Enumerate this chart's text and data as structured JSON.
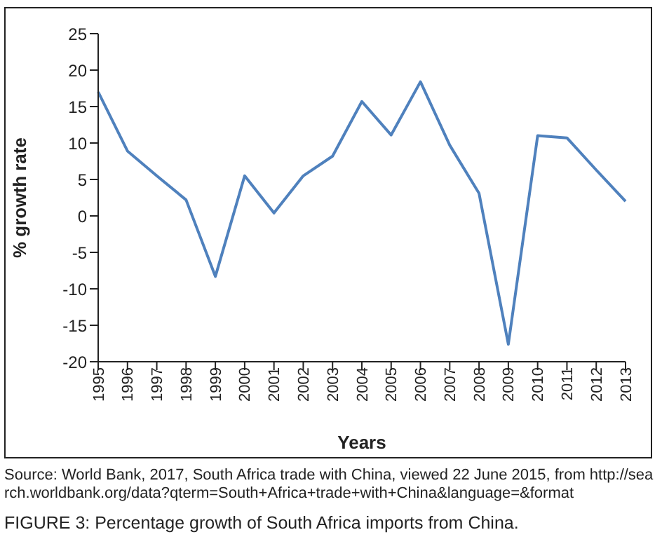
{
  "chart_data": {
    "type": "line",
    "xlabel": "Years",
    "ylabel": "% growth rate",
    "categories": [
      "1995",
      "1996",
      "1997",
      "1998",
      "1999",
      "2000",
      "2001",
      "2002",
      "2003",
      "2004",
      "2005",
      "2006",
      "2007",
      "2008",
      "2009",
      "2010",
      "2011",
      "2012",
      "2013"
    ],
    "series": [
      {
        "color": "#4f81bd",
        "values": [
          17,
          8.9,
          5.5,
          2.2,
          -8.3,
          5.5,
          0.4,
          5.5,
          8.2,
          15.7,
          11.1,
          18.4,
          9.7,
          3.1,
          -17.6,
          11.0,
          10.7,
          6.3,
          2.0
        ]
      }
    ],
    "ylim": [
      -20,
      25
    ],
    "yticks": [
      -20,
      -15,
      -10,
      -5,
      0,
      5,
      10,
      15,
      20,
      25
    ],
    "grid": false,
    "legend": false,
    "marker": "none",
    "line_style": "solid",
    "annotations": [
      "Source: World Bank, 2017, South Africa trade with China, viewed 22 June 2015, from http://search.worldbank.org/data?qterm=South+Africa+trade+with+China&language=&format",
      "FIGURE 3: Percentage growth of South Africa imports from China."
    ]
  }
}
